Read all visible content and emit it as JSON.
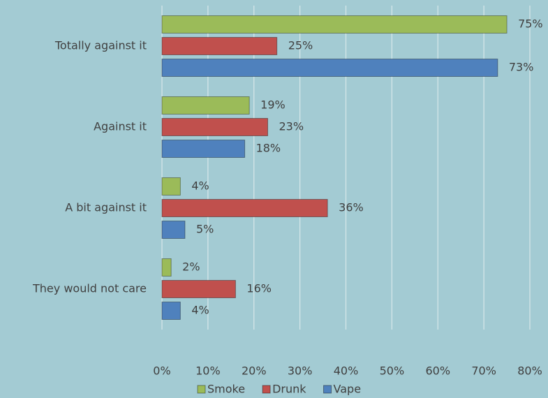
{
  "chart_data": {
    "type": "bar",
    "orientation": "horizontal",
    "categories": [
      "Totally against it",
      "Against it",
      "A bit against it",
      "They would not care"
    ],
    "series": [
      {
        "name": "Smoke",
        "color": "#9bbb59",
        "values": [
          75,
          19,
          4,
          2
        ],
        "value_labels": [
          "75%",
          "19%",
          "4%",
          "2%"
        ]
      },
      {
        "name": "Drunk",
        "color": "#c0504d",
        "values": [
          25,
          23,
          36,
          16
        ],
        "value_labels": [
          "25%",
          "23%",
          "36%",
          "16%"
        ]
      },
      {
        "name": "Vape",
        "color": "#4f81bd",
        "values": [
          73,
          18,
          5,
          4
        ],
        "value_labels": [
          "73%",
          "18%",
          "5%",
          "4%"
        ]
      }
    ],
    "xlim": [
      0,
      80
    ],
    "xticks": [
      {
        "value": 0,
        "label": "0%"
      },
      {
        "value": 10,
        "label": "10%"
      },
      {
        "value": 20,
        "label": "20%"
      },
      {
        "value": 30,
        "label": "30%"
      },
      {
        "value": 40,
        "label": "40%"
      },
      {
        "value": 50,
        "label": "50%"
      },
      {
        "value": 60,
        "label": "60%"
      },
      {
        "value": 70,
        "label": "70%"
      },
      {
        "value": 80,
        "label": "80%"
      }
    ],
    "grid": true,
    "legend": "bottom"
  }
}
